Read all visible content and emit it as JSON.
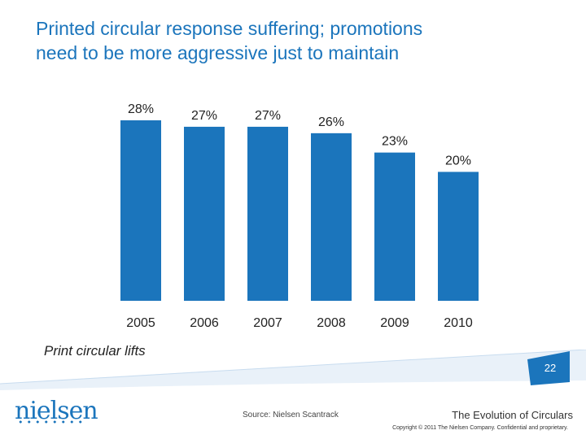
{
  "title_lines": [
    "Printed circular response suffering; promotions",
    "need to be more aggressive just to maintain"
  ],
  "subtitle": "Print circular lifts",
  "page_number": "22",
  "logo_text": "nielsen",
  "footer": {
    "source": "Source:  Nielsen Scantrack",
    "deck_title": "The Evolution of Circulars",
    "copyright": "Copyright © 2011 The Nielsen Company. Confidential and proprietary."
  },
  "colors": {
    "accent": "#1b75bc",
    "bar": "#1b75bc"
  },
  "chart_data": {
    "type": "bar",
    "title": "Printed circular response suffering; promotions need to be more aggressive just to maintain",
    "categories": [
      "2005",
      "2006",
      "2007",
      "2008",
      "2009",
      "2010"
    ],
    "values": [
      28,
      27,
      27,
      26,
      23,
      20
    ],
    "value_labels": [
      "28%",
      "27%",
      "27%",
      "26%",
      "23%",
      "20%"
    ],
    "unit": "%",
    "ylim": [
      0,
      28
    ],
    "grid": false,
    "legend": "none"
  }
}
